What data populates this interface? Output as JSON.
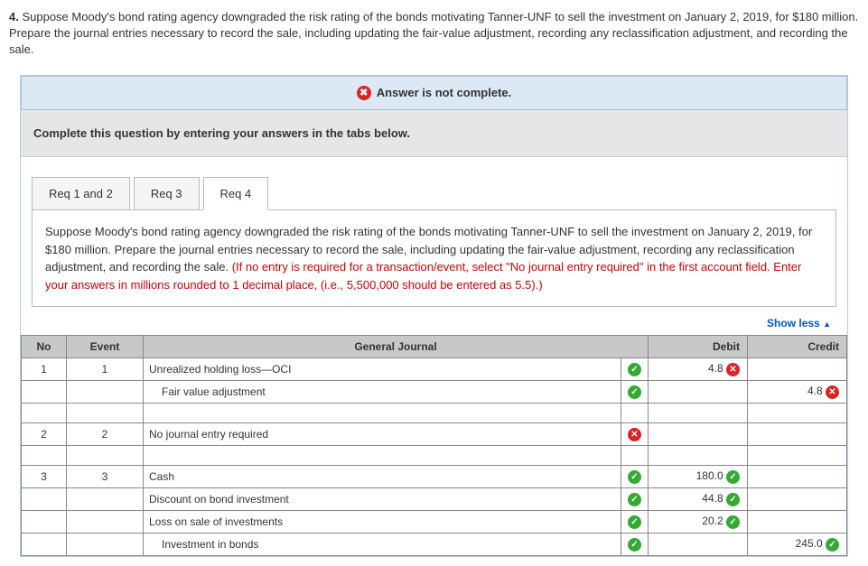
{
  "question": {
    "number": "4.",
    "text": "Suppose Moody's bond rating agency downgraded the risk rating of the bonds motivating Tanner-UNF to sell the investment on January 2, 2019, for $180 million. Prepare the journal entries necessary to record the sale, including updating the fair-value adjustment, recording any reclassification adjustment, and recording the sale."
  },
  "status": {
    "label": "Answer is not complete."
  },
  "instruction": "Complete this question by entering your answers in the tabs below.",
  "tabs": [
    {
      "label": "Req 1 and 2"
    },
    {
      "label": "Req 3"
    },
    {
      "label": "Req 4"
    }
  ],
  "req_box": {
    "black": "Suppose Moody's bond rating agency downgraded the risk rating of the bonds motivating Tanner-UNF to sell the investment on January 2, 2019, for $180 million. Prepare the journal entries necessary to record the sale, including updating the fair-value adjustment, recording any reclassification adjustment, and recording the sale. ",
    "red": "(If no entry is required for a transaction/event, select \"No journal entry required\" in the first account field. Enter your answers in millions rounded to 1 decimal place, (i.e., 5,500,000 should be entered as 5.5).)"
  },
  "show_less": "Show less",
  "headers": {
    "no": "No",
    "event": "Event",
    "gj": "General Journal",
    "debit": "Debit",
    "credit": "Credit"
  },
  "rows": [
    {
      "no": "1",
      "event": "1",
      "gj": "Unrealized holding loss—OCI",
      "indent": 0,
      "mark": "ok",
      "debit": "4.8",
      "debit_mark": "bad",
      "credit": "",
      "credit_mark": ""
    },
    {
      "no": "",
      "event": "",
      "gj": "Fair value adjustment",
      "indent": 1,
      "mark": "ok",
      "debit": "",
      "debit_mark": "",
      "credit": "4.8",
      "credit_mark": "bad"
    },
    {
      "no": "",
      "event": "",
      "gj": "",
      "indent": 0,
      "mark": "",
      "debit": "",
      "debit_mark": "",
      "credit": "",
      "credit_mark": ""
    },
    {
      "no": "2",
      "event": "2",
      "gj": "No journal entry required",
      "indent": 0,
      "mark": "bad",
      "debit": "",
      "debit_mark": "",
      "credit": "",
      "credit_mark": ""
    },
    {
      "no": "",
      "event": "",
      "gj": "",
      "indent": 0,
      "mark": "",
      "debit": "",
      "debit_mark": "",
      "credit": "",
      "credit_mark": ""
    },
    {
      "no": "3",
      "event": "3",
      "gj": "Cash",
      "indent": 0,
      "mark": "ok",
      "debit": "180.0",
      "debit_mark": "ok",
      "credit": "",
      "credit_mark": ""
    },
    {
      "no": "",
      "event": "",
      "gj": "Discount on bond investment",
      "indent": 0,
      "mark": "ok",
      "debit": "44.8",
      "debit_mark": "ok",
      "credit": "",
      "credit_mark": ""
    },
    {
      "no": "",
      "event": "",
      "gj": "Loss on sale of investments",
      "indent": 0,
      "mark": "ok",
      "debit": "20.2",
      "debit_mark": "ok",
      "credit": "",
      "credit_mark": ""
    },
    {
      "no": "",
      "event": "",
      "gj": "Investment in bonds",
      "indent": 1,
      "mark": "ok",
      "debit": "",
      "debit_mark": "",
      "credit": "245.0",
      "credit_mark": "ok"
    }
  ]
}
